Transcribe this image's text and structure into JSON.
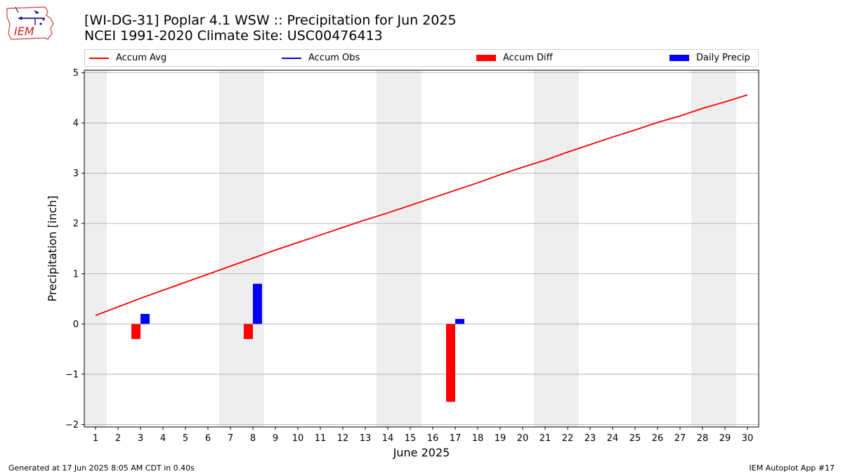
{
  "header": {
    "logo_text": "IEM",
    "title": "[WI-DG-31] Poplar 4.1 WSW :: Precipitation for Jun 2025",
    "subtitle": "NCEI 1991-2020 Climate Site: USC00476413"
  },
  "legend": {
    "items": [
      {
        "label": "Accum Avg",
        "kind": "line",
        "color": "#ff0000"
      },
      {
        "label": "Accum Obs",
        "kind": "line",
        "color": "#0000ff"
      },
      {
        "label": "Accum Diff",
        "kind": "box",
        "color": "#ff0000"
      },
      {
        "label": "Daily Precip",
        "kind": "box",
        "color": "#0000ff"
      }
    ]
  },
  "footer": {
    "left": "Generated at 17 Jun 2025 8:05 AM CDT in 0.40s",
    "right": "IEM Autoplot App #17"
  },
  "chart_data": {
    "type": "bar",
    "xlabel": "June 2025",
    "ylabel": "Precipitation [inch]",
    "xlim": [
      0.5,
      30.5
    ],
    "ylim": [
      -2.05,
      5.05
    ],
    "x_ticks": [
      1,
      2,
      3,
      4,
      5,
      6,
      7,
      8,
      9,
      10,
      11,
      12,
      13,
      14,
      15,
      16,
      17,
      18,
      19,
      20,
      21,
      22,
      23,
      24,
      25,
      26,
      27,
      28,
      29,
      30
    ],
    "y_ticks": [
      -2,
      -1,
      0,
      1,
      2,
      3,
      4,
      5
    ],
    "y_tick_labels": [
      "−2",
      "−1",
      "0",
      "1",
      "2",
      "3",
      "4",
      "5"
    ],
    "grid": "horizontal",
    "weekend_shading": [
      [
        0.5,
        1.5
      ],
      [
        6.5,
        8.5
      ],
      [
        13.5,
        15.5
      ],
      [
        20.5,
        22.5
      ],
      [
        27.5,
        29.5
      ]
    ],
    "weekend_color": "#eeeeee",
    "series": [
      {
        "name": "Accum Avg",
        "kind": "line",
        "color": "#ff0000",
        "x": [
          1,
          2,
          3,
          4,
          5,
          6,
          7,
          8,
          9,
          10,
          11,
          12,
          13,
          14,
          15,
          16,
          17,
          18,
          19,
          20,
          21,
          22,
          23,
          24,
          25,
          26,
          27,
          28,
          29,
          30
        ],
        "values": [
          0.17,
          0.34,
          0.51,
          0.67,
          0.83,
          0.99,
          1.15,
          1.31,
          1.47,
          1.62,
          1.77,
          1.92,
          2.07,
          2.21,
          2.36,
          2.51,
          2.66,
          2.81,
          2.97,
          3.12,
          3.26,
          3.42,
          3.57,
          3.72,
          3.86,
          4.01,
          4.14,
          4.29,
          4.42,
          4.56
        ]
      },
      {
        "name": "Accum Diff",
        "kind": "bar",
        "color": "#ff0000",
        "x": [
          3,
          8,
          17
        ],
        "values": [
          -0.3,
          -0.3,
          -1.55
        ]
      },
      {
        "name": "Daily Precip",
        "kind": "bar",
        "color": "#0000ff",
        "x": [
          3,
          8,
          17
        ],
        "values": [
          0.2,
          0.8,
          0.1
        ]
      }
    ]
  }
}
